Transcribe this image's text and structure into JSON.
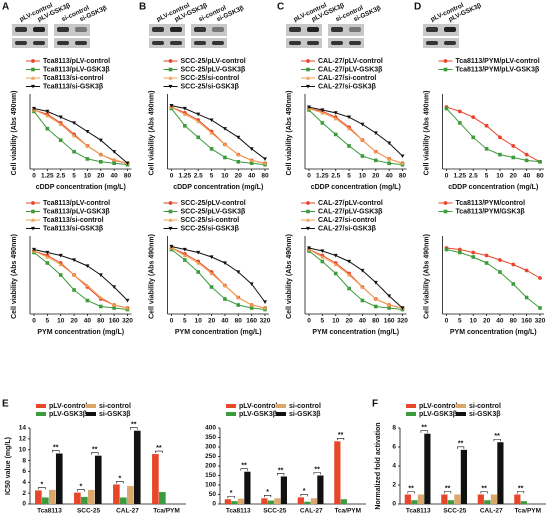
{
  "panel_labels": [
    "A",
    "B",
    "C",
    "D",
    "E",
    "F"
  ],
  "blots": [
    {
      "labels": [
        "pLV-control",
        "pLV-GSK3β",
        "si-control",
        "si-GSK3β"
      ]
    },
    {
      "labels": [
        "pLV-control",
        "pLV-GSK3β",
        "si-control",
        "si-GSK3β"
      ]
    },
    {
      "labels": [
        "pLV-control",
        "pLV-GSK3β",
        "si-control",
        "si-GSK3β"
      ]
    },
    {
      "labels": [
        "pLV-control",
        "pLV-GSK3β"
      ]
    }
  ],
  "chart_data": [
    {
      "type": "line",
      "xlabel": "cDDP concentration (mg/L)",
      "ylabel": "Cell viability (Abs 490nm)",
      "ylim": [
        0,
        2.5
      ],
      "categories": [
        "0",
        "1.25",
        "2.5",
        "5",
        "10",
        "20",
        "40",
        "80"
      ],
      "series": [
        {
          "name": "Tca8113/pLV-control",
          "color": "#e8462a",
          "values": [
            2.05,
            1.9,
            1.6,
            1.2,
            0.8,
            0.5,
            0.3,
            0.2
          ]
        },
        {
          "name": "Tca8113/pLV-GSK3β",
          "color": "#3c9b3c",
          "values": [
            2.0,
            1.4,
            1.0,
            0.6,
            0.35,
            0.25,
            0.2,
            0.15
          ]
        },
        {
          "name": "Tca8113/si-control",
          "color": "#f0a050",
          "values": [
            2.05,
            1.85,
            1.55,
            1.15,
            0.8,
            0.5,
            0.32,
            0.2
          ]
        },
        {
          "name": "Tca8113/si-GSK3β",
          "color": "#111111",
          "values": [
            2.1,
            2.0,
            1.8,
            1.6,
            1.3,
            1.0,
            0.6,
            0.2
          ]
        }
      ]
    },
    {
      "type": "line",
      "xlabel": "cDDP concentration (mg/L)",
      "ylabel": "Cell viability (Abs 490nm)",
      "ylim": [
        0,
        2.5
      ],
      "categories": [
        "0",
        "1.25",
        "2.5",
        "5",
        "10",
        "20",
        "40",
        "80"
      ],
      "series": [
        {
          "name": "SCC-25/pLV-control",
          "color": "#e8462a",
          "values": [
            2.15,
            1.95,
            1.7,
            1.3,
            0.85,
            0.5,
            0.3,
            0.2
          ]
        },
        {
          "name": "SCC-25/pLV-GSK3β",
          "color": "#3c9b3c",
          "values": [
            2.1,
            1.5,
            1.1,
            0.7,
            0.4,
            0.25,
            0.2,
            0.15
          ]
        },
        {
          "name": "SCC-25/si-control",
          "color": "#f0a050",
          "values": [
            2.15,
            1.9,
            1.65,
            1.25,
            0.85,
            0.5,
            0.3,
            0.2
          ]
        },
        {
          "name": "SCC-25/si-GSK3β",
          "color": "#111111",
          "values": [
            2.2,
            2.1,
            1.9,
            1.7,
            1.4,
            1.1,
            0.7,
            0.35
          ]
        }
      ]
    },
    {
      "type": "line",
      "xlabel": "cDDP concentration (mg/L)",
      "ylabel": "Cell viability (Abs 490nm)",
      "ylim": [
        0,
        2.5
      ],
      "categories": [
        "0",
        "1.25",
        "2.5",
        "5",
        "10",
        "20",
        "40",
        "80"
      ],
      "series": [
        {
          "name": "CAL-27/pLV-control",
          "color": "#e8462a",
          "values": [
            2.1,
            2.0,
            1.8,
            1.45,
            1.0,
            0.6,
            0.35,
            0.2
          ]
        },
        {
          "name": "CAL-27/pLV-GSK3β",
          "color": "#3c9b3c",
          "values": [
            2.05,
            1.6,
            1.2,
            0.8,
            0.45,
            0.3,
            0.2,
            0.15
          ]
        },
        {
          "name": "CAL-27/si-control",
          "color": "#f0a050",
          "values": [
            2.1,
            1.95,
            1.75,
            1.4,
            1.0,
            0.6,
            0.35,
            0.2
          ]
        },
        {
          "name": "CAL-27/si-GSK3β",
          "color": "#111111",
          "values": [
            2.15,
            2.05,
            1.95,
            1.8,
            1.55,
            1.25,
            0.9,
            0.45
          ]
        }
      ]
    },
    {
      "type": "line",
      "xlabel": "cDDP concentration (mg/L)",
      "ylabel": "Cell viability (Abs 490nm)",
      "ylim": [
        0,
        2.5
      ],
      "categories": [
        "0",
        "1.25",
        "2.5",
        "5",
        "10",
        "20",
        "40",
        "80"
      ],
      "series": [
        {
          "name": "Tca8113/PYM/pLV-control",
          "color": "#e8462a",
          "values": [
            2.15,
            2.0,
            1.8,
            1.5,
            1.1,
            0.8,
            0.5,
            0.25
          ]
        },
        {
          "name": "Tca8113/PYM/pLV-GSK3β",
          "color": "#3c9b3c",
          "values": [
            2.1,
            1.6,
            1.1,
            0.7,
            0.5,
            0.4,
            0.3,
            0.25
          ]
        }
      ]
    },
    {
      "type": "line",
      "xlabel": "PYM concentration (mg/L)",
      "ylabel": "Cell viability (Abs 490nm)",
      "ylim": [
        0,
        2.5
      ],
      "categories": [
        "0",
        "5",
        "10",
        "20",
        "40",
        "80",
        "160",
        "320"
      ],
      "series": [
        {
          "name": "Tca8113/pLV-control",
          "color": "#e8462a",
          "values": [
            2.1,
            1.95,
            1.7,
            1.3,
            0.9,
            0.5,
            0.3,
            0.2
          ]
        },
        {
          "name": "Tca8113/pLV-GSK3β",
          "color": "#3c9b3c",
          "values": [
            2.05,
            1.7,
            1.3,
            0.8,
            0.45,
            0.25,
            0.2,
            0.15
          ]
        },
        {
          "name": "Tca8113/si-control",
          "color": "#f0a050",
          "values": [
            2.1,
            1.9,
            1.65,
            1.3,
            0.95,
            0.55,
            0.3,
            0.2
          ]
        },
        {
          "name": "Tca8113/si-GSK3β",
          "color": "#111111",
          "values": [
            2.15,
            2.05,
            1.95,
            1.8,
            1.6,
            1.3,
            0.9,
            0.45
          ]
        }
      ]
    },
    {
      "type": "line",
      "xlabel": "PYM concentration (mg/L)",
      "ylabel": "Cell viability (Abs 490nm)",
      "ylim": [
        0,
        2.5
      ],
      "categories": [
        "0",
        "5",
        "10",
        "20",
        "40",
        "80",
        "160",
        "320"
      ],
      "series": [
        {
          "name": "SCC-25/pLV-control",
          "color": "#e8462a",
          "values": [
            2.2,
            2.0,
            1.75,
            1.4,
            0.95,
            0.55,
            0.3,
            0.2
          ]
        },
        {
          "name": "SCC-25/pLV-GSK3β",
          "color": "#3c9b3c",
          "values": [
            2.15,
            1.8,
            1.4,
            0.9,
            0.5,
            0.3,
            0.2,
            0.15
          ]
        },
        {
          "name": "SCC-25/si-control",
          "color": "#f0a050",
          "values": [
            2.2,
            1.95,
            1.7,
            1.35,
            0.95,
            0.55,
            0.3,
            0.2
          ]
        },
        {
          "name": "SCC-25/si-GSK3β",
          "color": "#111111",
          "values": [
            2.25,
            2.15,
            2.05,
            1.9,
            1.7,
            1.4,
            1.0,
            0.4
          ]
        }
      ]
    },
    {
      "type": "line",
      "xlabel": "PYM concentration (mg/L)",
      "ylabel": "Cell viability (Abs 490nm)",
      "ylim": [
        0,
        2.5
      ],
      "categories": [
        "0",
        "5",
        "10",
        "20",
        "40",
        "80",
        "160",
        "320"
      ],
      "series": [
        {
          "name": "CAL-27/pLV-control",
          "color": "#e8462a",
          "values": [
            2.15,
            1.95,
            1.7,
            1.35,
            0.9,
            0.5,
            0.3,
            0.2
          ]
        },
        {
          "name": "CAL-27/pLV-GSK3β",
          "color": "#3c9b3c",
          "values": [
            2.1,
            1.75,
            1.35,
            0.85,
            0.45,
            0.25,
            0.2,
            0.15
          ]
        },
        {
          "name": "CAL-27/si-control",
          "color": "#f0a050",
          "values": [
            2.15,
            1.9,
            1.65,
            1.3,
            0.9,
            0.5,
            0.3,
            0.2
          ]
        },
        {
          "name": "CAL-27/si-GSK3β",
          "color": "#111111",
          "values": [
            2.2,
            2.1,
            1.95,
            1.75,
            1.45,
            1.05,
            0.6,
            0.2
          ]
        }
      ]
    },
    {
      "type": "line",
      "xlabel": "PYM concentration (mg/L)",
      "ylabel": "Cell viability (Abs 490nm)",
      "ylim": [
        0,
        2.5
      ],
      "categories": [
        "0",
        "5",
        "10",
        "20",
        "40",
        "80",
        "160",
        "320"
      ],
      "series": [
        {
          "name": "Tca8113/PYM/control",
          "color": "#e8462a",
          "values": [
            2.2,
            2.15,
            2.05,
            1.95,
            1.8,
            1.65,
            1.45,
            1.2
          ]
        },
        {
          "name": "Tca8113/PYM/GSK3β",
          "color": "#3c9b3c",
          "values": [
            2.15,
            2.05,
            1.9,
            1.7,
            1.4,
            1.0,
            0.55,
            0.2
          ]
        }
      ]
    },
    {
      "type": "bar",
      "ylabel": "IC50 value (mg/L)",
      "ylim": [
        0,
        14
      ],
      "yticks": [
        0,
        2,
        4,
        6,
        8,
        10,
        12,
        14
      ],
      "categories": [
        "Tca8113",
        "SCC-25",
        "CAL-27",
        "Tca/PYM"
      ],
      "series": [
        {
          "name": "pLV-control",
          "color": "#e8462a",
          "values": [
            2.5,
            2.1,
            3.6,
            9.2
          ]
        },
        {
          "name": "pLV-GSK3β",
          "color": "#3c9b3c",
          "values": [
            1.2,
            1.3,
            1.2,
            2.2
          ]
        },
        {
          "name": "si-control",
          "color": "#d9a86a",
          "values": [
            2.6,
            2.6,
            3.3,
            null
          ]
        },
        {
          "name": "si-GSK3β",
          "color": "#111111",
          "values": [
            9.3,
            8.9,
            13.5,
            null
          ]
        }
      ],
      "significance": [
        [
          "*",
          "**"
        ],
        [
          "*",
          "**"
        ],
        [
          "*",
          "**"
        ],
        [
          "**",
          null
        ]
      ]
    },
    {
      "type": "bar",
      "ylim": [
        0,
        400
      ],
      "yticks": [
        0,
        50,
        100,
        150,
        200,
        250,
        300,
        350,
        400
      ],
      "categories": [
        "Tca8113",
        "SCC-25",
        "CAL-27",
        "Tca/PYM"
      ],
      "series": [
        {
          "name": "pLV-control",
          "color": "#e8462a",
          "values": [
            25,
            30,
            35,
            330
          ]
        },
        {
          "name": "pLV-GSK3β",
          "color": "#3c9b3c",
          "values": [
            15,
            18,
            12,
            25
          ]
        },
        {
          "name": "si-control",
          "color": "#d9a86a",
          "values": [
            28,
            30,
            30,
            null
          ]
        },
        {
          "name": "si-GSK3β",
          "color": "#111111",
          "values": [
            170,
            145,
            150,
            null
          ]
        }
      ],
      "significance": [
        [
          "*",
          "**"
        ],
        [
          "*",
          "**"
        ],
        [
          "*",
          "**"
        ],
        [
          "**",
          null
        ]
      ]
    },
    {
      "type": "bar",
      "ylabel": "Normalized fold activation",
      "ylim": [
        0,
        8
      ],
      "yticks": [
        0,
        2,
        4,
        6,
        8
      ],
      "categories": [
        "Tca8113",
        "SCC-25",
        "CAL-27",
        "Tca/PYM"
      ],
      "series": [
        {
          "name": "pLV-control",
          "color": "#e8462a",
          "values": [
            1,
            1,
            1,
            1
          ]
        },
        {
          "name": "pLV-GSK3β",
          "color": "#3c9b3c",
          "values": [
            0.4,
            0.4,
            0.4,
            0.3
          ]
        },
        {
          "name": "si-control",
          "color": "#d9a86a",
          "values": [
            1,
            1,
            1,
            null
          ]
        },
        {
          "name": "si-GSK3β",
          "color": "#111111",
          "values": [
            7.4,
            5.7,
            6.5,
            null
          ]
        }
      ],
      "significance": [
        [
          "**",
          "**"
        ],
        [
          "**",
          "**"
        ],
        [
          "**",
          "**"
        ],
        [
          "**",
          null
        ]
      ]
    }
  ]
}
